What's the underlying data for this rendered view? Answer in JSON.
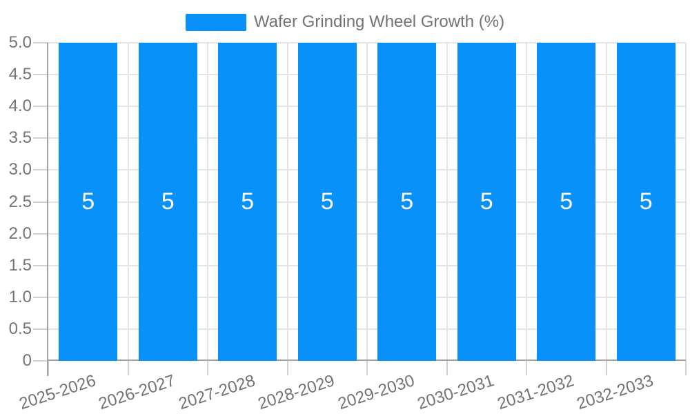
{
  "chart_data": {
    "type": "bar",
    "title": "",
    "legend": {
      "label": "Wafer Grinding Wheel Growth (%)",
      "position": "top-center"
    },
    "categories": [
      "2025-2026",
      "2026-2027",
      "2027-2028",
      "2028-2029",
      "2029-2030",
      "2030-2031",
      "2031-2032",
      "2032-2033"
    ],
    "series": [
      {
        "name": "Wafer Grinding Wheel Growth (%)",
        "values": [
          5,
          5,
          5,
          5,
          5,
          5,
          5,
          5
        ],
        "bar_labels": [
          "5",
          "5",
          "5",
          "5",
          "5",
          "5",
          "5",
          "5"
        ]
      }
    ],
    "xlabel": "",
    "ylabel": "",
    "ylim": [
      0,
      5
    ],
    "yticks": {
      "values": [
        0,
        0.5,
        1,
        1.5,
        2,
        2.5,
        3,
        3.5,
        4,
        4.5,
        5
      ],
      "labels": [
        "0",
        "0.5",
        "1.0",
        "1.5",
        "2.0",
        "2.5",
        "3.0",
        "3.5",
        "4.0",
        "4.5",
        "5.0"
      ]
    },
    "grid": {
      "horizontal": true,
      "vertical": true
    },
    "x_tick_label_rotation_deg": -18,
    "colors": {
      "bar": "#0991FA",
      "grid": "#E4E4E4",
      "tick": "#D2D2D2",
      "axis": "#A3A3A3",
      "text": "#737373",
      "bar_label": "#FFFFFF",
      "background": "#FFFFFF"
    }
  }
}
